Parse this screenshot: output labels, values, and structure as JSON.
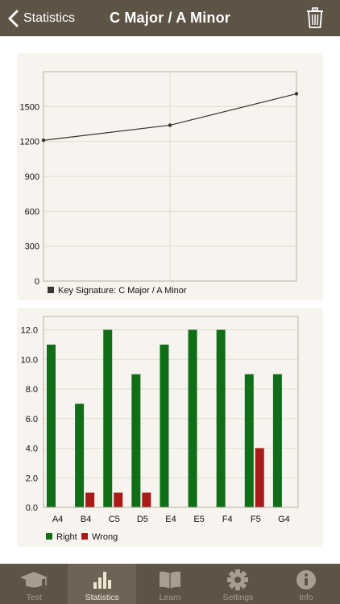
{
  "header": {
    "back_label": "Statistics",
    "title": "C Major / A Minor",
    "icons": {
      "back": "chevron-left-icon",
      "trash": "trash-icon"
    }
  },
  "colors": {
    "bar_bg": "#5e5446",
    "panel_bg": "#f7f3ee",
    "right": "#0f6e17",
    "wrong": "#a81b17",
    "line": "#3a3530"
  },
  "chart_data": [
    {
      "type": "line",
      "x": [
        1,
        2,
        3
      ],
      "series": [
        {
          "name": "Key Signature: C Major / A Minor",
          "values": [
            1210,
            1340,
            1610
          ]
        }
      ],
      "y_ticks": [
        "0",
        "300",
        "600",
        "900",
        "1200",
        "1500"
      ],
      "ylim": [
        0,
        1800
      ],
      "grid": true,
      "legend": "bottom-left"
    },
    {
      "type": "bar",
      "categories": [
        "A4",
        "B4",
        "C5",
        "D5",
        "E4",
        "E5",
        "F4",
        "F5",
        "G4"
      ],
      "series": [
        {
          "name": "Right",
          "values": [
            11,
            7,
            12,
            9,
            11,
            12,
            12,
            9,
            9
          ]
        },
        {
          "name": "Wrong",
          "values": [
            0,
            1,
            1,
            1,
            0,
            0,
            0,
            4,
            0
          ]
        }
      ],
      "y_ticks": [
        "0.0",
        "2.0",
        "4.0",
        "6.0",
        "8.0",
        "10.0",
        "12.0"
      ],
      "ylim": [
        0,
        12.9
      ],
      "grid": true,
      "legend": "bottom-left"
    }
  ],
  "tabbar": {
    "tabs": [
      {
        "label": "Test",
        "icon": "graduation-cap-icon",
        "active": false
      },
      {
        "label": "Statistics",
        "icon": "bar-chart-icon",
        "active": true
      },
      {
        "label": "Learn",
        "icon": "book-icon",
        "active": false
      },
      {
        "label": "Settings",
        "icon": "gear-icon",
        "active": false
      },
      {
        "label": "Info",
        "icon": "info-icon",
        "active": false
      }
    ]
  }
}
